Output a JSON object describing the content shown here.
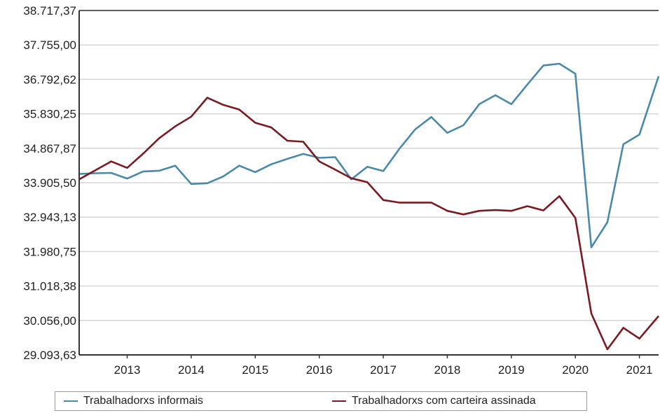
{
  "chart_data": {
    "type": "line",
    "title": "",
    "xlabel": "",
    "ylabel": "",
    "ylim": [
      29093.63,
      38717.37
    ],
    "xlim": [
      2012.25,
      2021.3
    ],
    "y_ticks": [
      "29.093,63",
      "30.056,00",
      "31.018,38",
      "31.980,75",
      "32.943,13",
      "33.905,50",
      "34.867,87",
      "35.830,25",
      "36.792,62",
      "37.755,00",
      "38.717,37"
    ],
    "y_tick_values": [
      29093.63,
      30056.0,
      31018.38,
      31980.75,
      32943.13,
      33905.5,
      34867.87,
      35830.25,
      36792.62,
      37755.0,
      38717.37
    ],
    "x_ticks": [
      "2013",
      "2014",
      "2015",
      "2016",
      "2017",
      "2018",
      "2019",
      "2020",
      "2021"
    ],
    "x_tick_values": [
      2013,
      2014,
      2015,
      2016,
      2017,
      2018,
      2019,
      2020,
      2021
    ],
    "grid": true,
    "legend_position": "bottom",
    "series": [
      {
        "name": "Trabalhadorxs informais",
        "color": "#4a8aa8",
        "x": [
          2012.25,
          2012.5,
          2012.75,
          2013.0,
          2013.25,
          2013.5,
          2013.75,
          2014.0,
          2014.25,
          2014.5,
          2014.75,
          2015.0,
          2015.25,
          2015.5,
          2015.75,
          2016.0,
          2016.25,
          2016.5,
          2016.75,
          2017.0,
          2017.25,
          2017.5,
          2017.75,
          2018.0,
          2018.25,
          2018.5,
          2018.75,
          2019.0,
          2019.25,
          2019.5,
          2019.75,
          2020.0,
          2020.25,
          2020.5,
          2020.75,
          2021.0,
          2021.3
        ],
        "y": [
          34150,
          34170,
          34180,
          34020,
          34220,
          34240,
          34380,
          33870,
          33890,
          34080,
          34380,
          34200,
          34420,
          34570,
          34710,
          34600,
          34620,
          34000,
          34350,
          34230,
          34850,
          35400,
          35740,
          35300,
          35510,
          36100,
          36350,
          36100,
          36650,
          37180,
          37230,
          36950,
          32100,
          32800,
          34980,
          35250,
          36880
        ]
      },
      {
        "name": "Trabalhadorxs com carteira assinada",
        "color": "#7a1a22",
        "x": [
          2012.25,
          2012.5,
          2012.75,
          2013.0,
          2013.25,
          2013.5,
          2013.75,
          2014.0,
          2014.25,
          2014.5,
          2014.75,
          2015.0,
          2015.25,
          2015.5,
          2015.75,
          2016.0,
          2016.25,
          2016.5,
          2016.75,
          2017.0,
          2017.25,
          2017.5,
          2017.75,
          2018.0,
          2018.25,
          2018.5,
          2018.75,
          2019.0,
          2019.25,
          2019.5,
          2019.75,
          2020.0,
          2020.25,
          2020.5,
          2020.75,
          2021.0,
          2021.3
        ],
        "y": [
          34000,
          34250,
          34500,
          34320,
          34720,
          35150,
          35480,
          35750,
          36280,
          36080,
          35950,
          35580,
          35450,
          35080,
          35050,
          34500,
          34270,
          34030,
          33920,
          33420,
          33350,
          33350,
          33350,
          33120,
          33020,
          33120,
          33140,
          33120,
          33250,
          33130,
          33530,
          32920,
          30250,
          29250,
          29850,
          29550,
          30180
        ]
      }
    ]
  }
}
